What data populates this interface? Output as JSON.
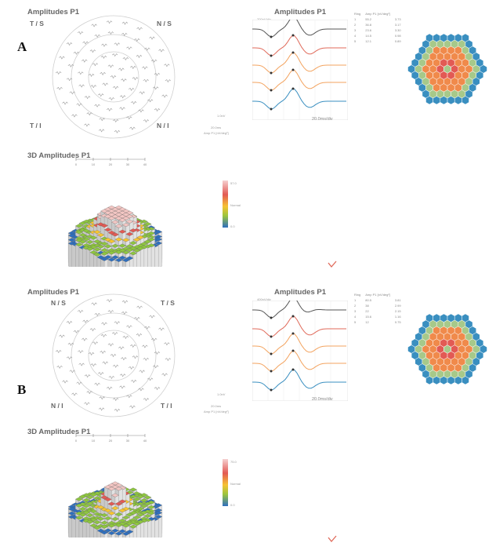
{
  "panels": [
    {
      "letter": "A",
      "field_title": "Amplitudes P1",
      "quadrants": {
        "top_left": "T / S",
        "top_right": "N / S",
        "bottom_left": "T / I",
        "bottom_right": "N / I"
      },
      "trace_title": "Amplitudes P1",
      "trace_scale_top": "200nV/div",
      "trace_scale_bottom": "20.0ms/div",
      "scale_labels": [
        "1.0nV",
        "20.0ms",
        "Amp P1 [nV/deg²]"
      ],
      "table_headers": [
        "Ring",
        "Amp P1 [nV/deg²]",
        "Amp P1 [nV/deg²]"
      ],
      "table_rows": [
        [
          "1",
          "55.2",
          "3.73"
        ],
        [
          "2",
          "36.8",
          "3.17"
        ],
        [
          "3",
          "23.6",
          "3.30"
        ],
        [
          "4",
          "14.5",
          "0.98"
        ],
        [
          "5",
          "12.1",
          "0.89"
        ]
      ],
      "three_d_title": "3D Amplitudes P1",
      "three_d_ticks": [
        "0",
        "10",
        "20",
        "30",
        "40"
      ],
      "legend_labels": [
        "57.0",
        "Normal",
        "0.0"
      ]
    },
    {
      "letter": "B",
      "field_title": "Amplitudes P1",
      "quadrants": {
        "top_left": "N / S",
        "top_right": "T / S",
        "bottom_left": "N / I",
        "bottom_right": "T / I"
      },
      "trace_title": "Amplitudes P1",
      "trace_scale_top": "400nV/div",
      "trace_scale_bottom": "20.0ms/div",
      "scale_labels": [
        "1.0nV",
        "20.0ms",
        "Amp P1 [nV/deg²]"
      ],
      "table_headers": [
        "Ring",
        "Amp P1 [nV/deg²]",
        "Amp P1 [nV/deg²]"
      ],
      "table_rows": [
        [
          "1",
          "80.5",
          "3.81"
        ],
        [
          "2",
          "38",
          "2.99"
        ],
        [
          "3",
          "22",
          "2.15"
        ],
        [
          "4",
          "15.6",
          "1.16"
        ],
        [
          "5",
          "12",
          "0.75"
        ]
      ],
      "three_d_title": "3D Amplitudes P1",
      "three_d_ticks": [
        "0",
        "10",
        "20",
        "30",
        "40"
      ],
      "legend_labels": [
        "75.0",
        "Normal",
        "0.0"
      ]
    }
  ],
  "colors": {
    "ring1": "#a7c98a",
    "ring2": "#e25a54",
    "ring3": "#f08a4b",
    "ring4": "#a7c98a",
    "ring5": "#3a8fc0",
    "trace_dark": "#555555",
    "trace_red": "#e06a5a",
    "trace_orange": "#f3a35f",
    "trace_blue": "#3a8fc0"
  }
}
